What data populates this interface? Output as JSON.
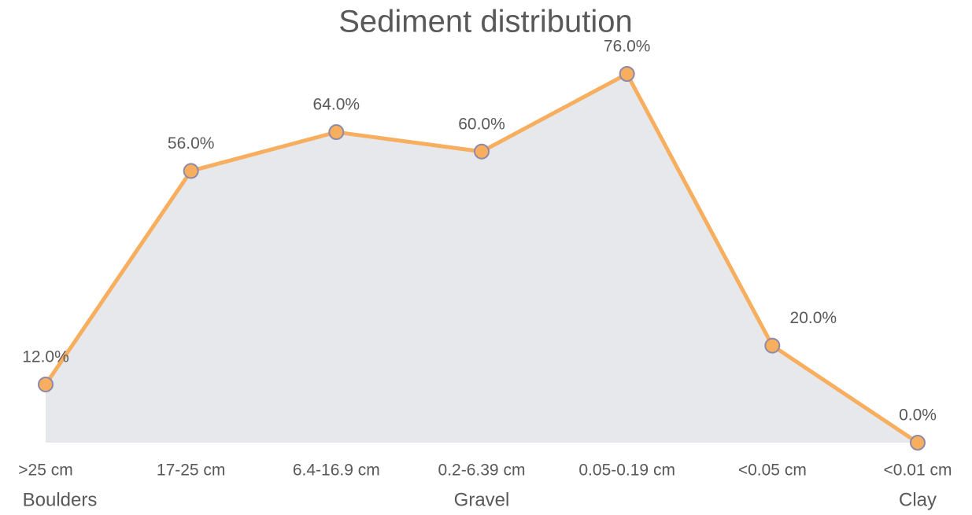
{
  "chart_data": {
    "type": "area",
    "title": "Sediment distribution",
    "categories": [
      ">25 cm",
      "17-25 cm",
      "6.4-16.9 cm",
      "0.2-6.39 cm",
      "0.05-0.19 cm",
      "<0.05 cm",
      "<0.01 cm"
    ],
    "groups": [
      "Boulders",
      null,
      null,
      "Gravel",
      null,
      null,
      "Clay"
    ],
    "values": [
      12,
      56,
      64,
      60,
      76,
      20,
      0
    ],
    "value_labels": [
      "12.0%",
      "56.0%",
      "64.0%",
      "60.0%",
      "76.0%",
      "20.0%",
      "0.0%"
    ],
    "color": "#f7ae5f",
    "marker_edge_color": "#8e8aa8",
    "area_color": "#e6e8eb"
  }
}
